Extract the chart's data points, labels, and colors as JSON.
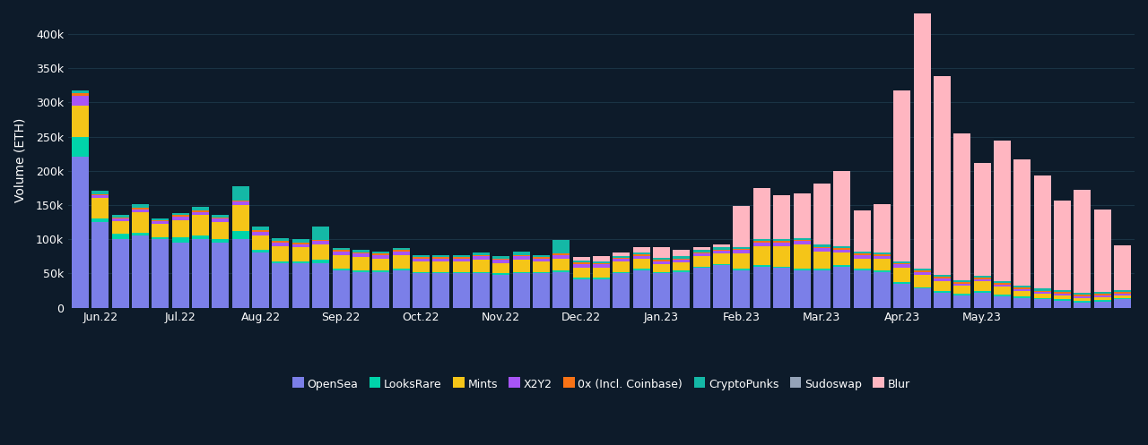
{
  "background_color": "#0d1b2a",
  "text_color": "#ffffff",
  "grid_color": "#1a3344",
  "ylabel": "Volume (ETH)",
  "ylim": [
    0,
    430000
  ],
  "yticks": [
    0,
    50000,
    100000,
    150000,
    200000,
    250000,
    300000,
    350000,
    400000
  ],
  "xtick_labels": [
    "Jun.22",
    "Jul.22",
    "Aug.22",
    "Sep.22",
    "Oct.22",
    "Nov.22",
    "Dec.22",
    "Jan.23",
    "Feb.23",
    "Mar.23",
    "Apr.23",
    "May.23"
  ],
  "series": {
    "OpenSea": {
      "color": "#7b7fe8",
      "values": [
        220000,
        125000,
        100000,
        105000,
        100000,
        95000,
        100000,
        95000,
        100000,
        80000,
        65000,
        65000,
        65000,
        55000,
        52000,
        52000,
        55000,
        50000,
        50000,
        50000,
        50000,
        48000,
        50000,
        50000,
        52000,
        42000,
        42000,
        50000,
        55000,
        50000,
        52000,
        58000,
        62000,
        55000,
        60000,
        58000,
        55000,
        55000,
        60000,
        55000,
        52000,
        35000,
        28000,
        22000,
        18000,
        22000,
        17000,
        14000,
        12000,
        10000,
        8000,
        9000,
        12000
      ]
    },
    "LooksRare": {
      "color": "#00d4aa",
      "values": [
        30000,
        5000,
        8000,
        5000,
        3000,
        8000,
        5000,
        5000,
        12000,
        4000,
        3000,
        3000,
        5000,
        2000,
        2000,
        2000,
        2000,
        2000,
        2000,
        2000,
        2000,
        2000,
        2000,
        2000,
        2000,
        2000,
        2000,
        2000,
        2000,
        2000,
        2000,
        2000,
        2000,
        2000,
        2000,
        2000,
        2000,
        2000,
        2000,
        2000,
        2000,
        2000,
        2000,
        2000,
        2000,
        2000,
        2000,
        2000,
        2000,
        2000,
        2000,
        2000,
        2000
      ]
    },
    "Mints": {
      "color": "#f5c518",
      "values": [
        45000,
        30000,
        18000,
        30000,
        20000,
        25000,
        30000,
        25000,
        38000,
        22000,
        22000,
        20000,
        22000,
        20000,
        20000,
        18000,
        20000,
        15000,
        15000,
        15000,
        18000,
        15000,
        18000,
        15000,
        18000,
        15000,
        15000,
        15000,
        15000,
        12000,
        12000,
        15000,
        15000,
        22000,
        28000,
        30000,
        35000,
        25000,
        18000,
        15000,
        18000,
        22000,
        18000,
        15000,
        12000,
        15000,
        12000,
        8000,
        6000,
        6000,
        4000,
        4000,
        4000
      ]
    },
    "X2Y2": {
      "color": "#a855f7",
      "values": [
        15000,
        4000,
        4000,
        4000,
        3000,
        5000,
        5000,
        5000,
        5000,
        5000,
        5000,
        5000,
        5000,
        5000,
        5000,
        5000,
        5000,
        5000,
        5000,
        5000,
        5000,
        5000,
        5000,
        5000,
        5000,
        5000,
        4000,
        4000,
        4000,
        4000,
        4000,
        4000,
        4000,
        5000,
        5000,
        5000,
        5000,
        5000,
        5000,
        5000,
        4000,
        4000,
        4000,
        4000,
        3000,
        3000,
        3000,
        3000,
        3000,
        3000,
        3000,
        3000,
        3000
      ]
    },
    "0x (Incl. Coinbase)": {
      "color": "#f97316",
      "values": [
        3000,
        2000,
        2000,
        2000,
        2000,
        2000,
        2000,
        2000,
        2000,
        2000,
        2000,
        2000,
        2000,
        2000,
        2000,
        2000,
        2000,
        2000,
        2000,
        2000,
        2000,
        2000,
        2000,
        2000,
        2000,
        2000,
        2000,
        2000,
        2000,
        2000,
        2000,
        2000,
        2000,
        2000,
        2000,
        2000,
        2000,
        2000,
        2000,
        2000,
        2000,
        2000,
        2000,
        2000,
        2000,
        2000,
        2000,
        2000,
        2000,
        2000,
        2000,
        2000,
        2000
      ]
    },
    "CryptoPunks": {
      "color": "#14b8a6",
      "values": [
        5000,
        5000,
        3000,
        5000,
        3000,
        3000,
        5000,
        3000,
        20000,
        5000,
        5000,
        5000,
        20000,
        3000,
        3000,
        3000,
        3000,
        3000,
        3000,
        3000,
        3000,
        3000,
        5000,
        3000,
        20000,
        3000,
        3000,
        3000,
        3000,
        3000,
        3000,
        3000,
        3000,
        3000,
        3000,
        3000,
        3000,
        3000,
        3000,
        3000,
        3000,
        3000,
        3000,
        3000,
        3000,
        3000,
        3000,
        3000,
        3000,
        3000,
        3000,
        3000,
        3000
      ]
    },
    "Sudoswap": {
      "color": "#94a3b8",
      "values": [
        0,
        0,
        0,
        0,
        0,
        0,
        0,
        0,
        0,
        0,
        0,
        0,
        0,
        0,
        0,
        0,
        0,
        0,
        0,
        0,
        0,
        0,
        0,
        0,
        0,
        0,
        0,
        0,
        0,
        0,
        0,
        0,
        0,
        0,
        0,
        0,
        0,
        0,
        0,
        0,
        0,
        0,
        0,
        0,
        0,
        0,
        0,
        0,
        0,
        0,
        0,
        0,
        0
      ]
    },
    "Blur": {
      "color": "#ffb6c1",
      "values": [
        0,
        0,
        0,
        0,
        0,
        0,
        0,
        0,
        0,
        0,
        0,
        0,
        0,
        0,
        0,
        0,
        0,
        0,
        0,
        0,
        0,
        0,
        0,
        0,
        0,
        5000,
        8000,
        5000,
        8000,
        15000,
        10000,
        5000,
        5000,
        60000,
        75000,
        65000,
        65000,
        90000,
        110000,
        60000,
        70000,
        250000,
        395000,
        290000,
        215000,
        165000,
        205000,
        185000,
        165000,
        130000,
        150000,
        120000,
        65000
      ]
    }
  },
  "legend_order": [
    "OpenSea",
    "LooksRare",
    "Mints",
    "X2Y2",
    "0x (Incl. Coinbase)",
    "CryptoPunks",
    "Sudoswap",
    "Blur"
  ]
}
